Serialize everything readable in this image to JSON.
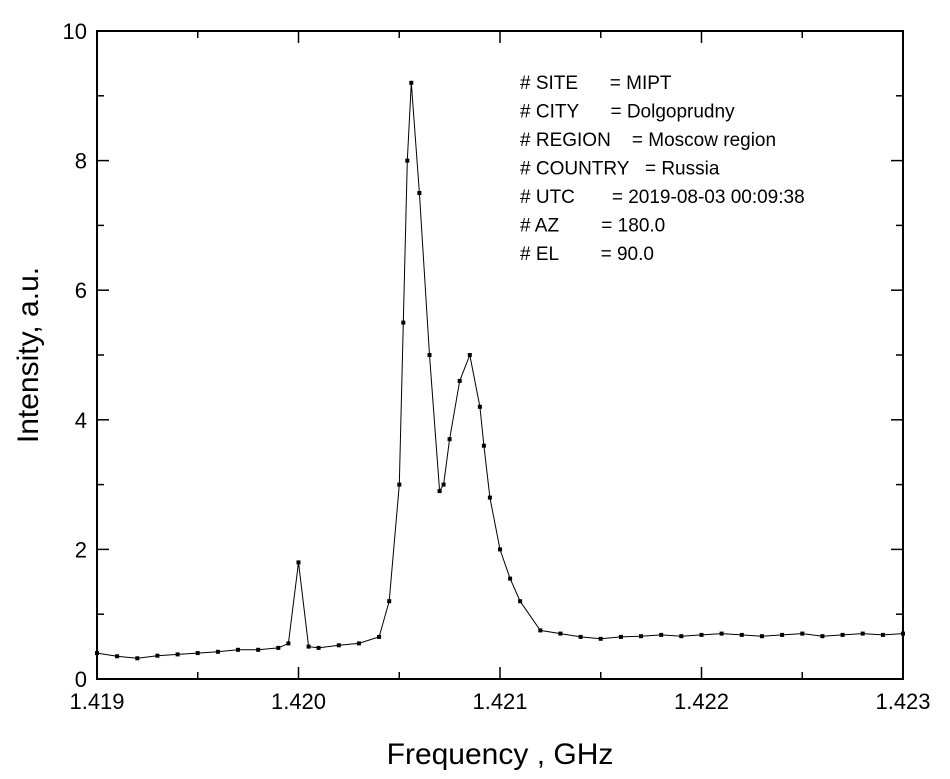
{
  "chart_data": {
    "type": "line",
    "xlabel": "Frequency , GHz",
    "ylabel": "Intensity, a.u.",
    "xlim": [
      1.419,
      1.423
    ],
    "ylim": [
      0,
      10
    ],
    "x_ticks": [
      "1.419",
      "1.420",
      "1.421",
      "1.422",
      "1.423"
    ],
    "y_ticks": [
      "0",
      "2",
      "4",
      "6",
      "8",
      "10"
    ],
    "grid": false,
    "markers": "small filled squares connected by thin line",
    "line_color": "#000000",
    "info_lines": [
      "# SITE      = MIPT",
      "# CITY      = Dolgoprudny",
      "# REGION    = Moscow region",
      "# COUNTRY   = Russia",
      "# UTC       = 2019-08-03 00:09:38",
      "# AZ        = 180.0",
      "# EL        = 90.0"
    ],
    "series": [
      {
        "x": [
          1.419,
          1.4191,
          1.4192,
          1.4193,
          1.4194,
          1.4195,
          1.4196,
          1.4197,
          1.4198,
          1.4199,
          1.41995,
          1.42,
          1.42005,
          1.4201,
          1.4202,
          1.4203,
          1.4204,
          1.42045,
          1.4205,
          1.42052,
          1.42054,
          1.42056,
          1.4206,
          1.42065,
          1.4207,
          1.42072,
          1.42075,
          1.4208,
          1.42085,
          1.4209,
          1.42092,
          1.42095,
          1.421,
          1.42105,
          1.4211,
          1.4212,
          1.4213,
          1.4214,
          1.4215,
          1.4216,
          1.4217,
          1.4218,
          1.4219,
          1.422,
          1.4221,
          1.4222,
          1.4223,
          1.4224,
          1.4225,
          1.4226,
          1.4227,
          1.4228,
          1.4229,
          1.423
        ],
        "y": [
          0.4,
          0.35,
          0.32,
          0.36,
          0.38,
          0.4,
          0.42,
          0.45,
          0.45,
          0.48,
          0.55,
          1.8,
          0.5,
          0.48,
          0.52,
          0.55,
          0.65,
          1.2,
          3.0,
          5.5,
          8.0,
          9.2,
          7.5,
          5.0,
          2.9,
          3.0,
          3.7,
          4.6,
          5.0,
          4.2,
          3.6,
          2.8,
          2.0,
          1.55,
          1.2,
          0.75,
          0.7,
          0.65,
          0.62,
          0.65,
          0.66,
          0.68,
          0.66,
          0.68,
          0.7,
          0.68,
          0.66,
          0.68,
          0.7,
          0.66,
          0.68,
          0.7,
          0.68,
          0.7
        ]
      }
    ]
  }
}
